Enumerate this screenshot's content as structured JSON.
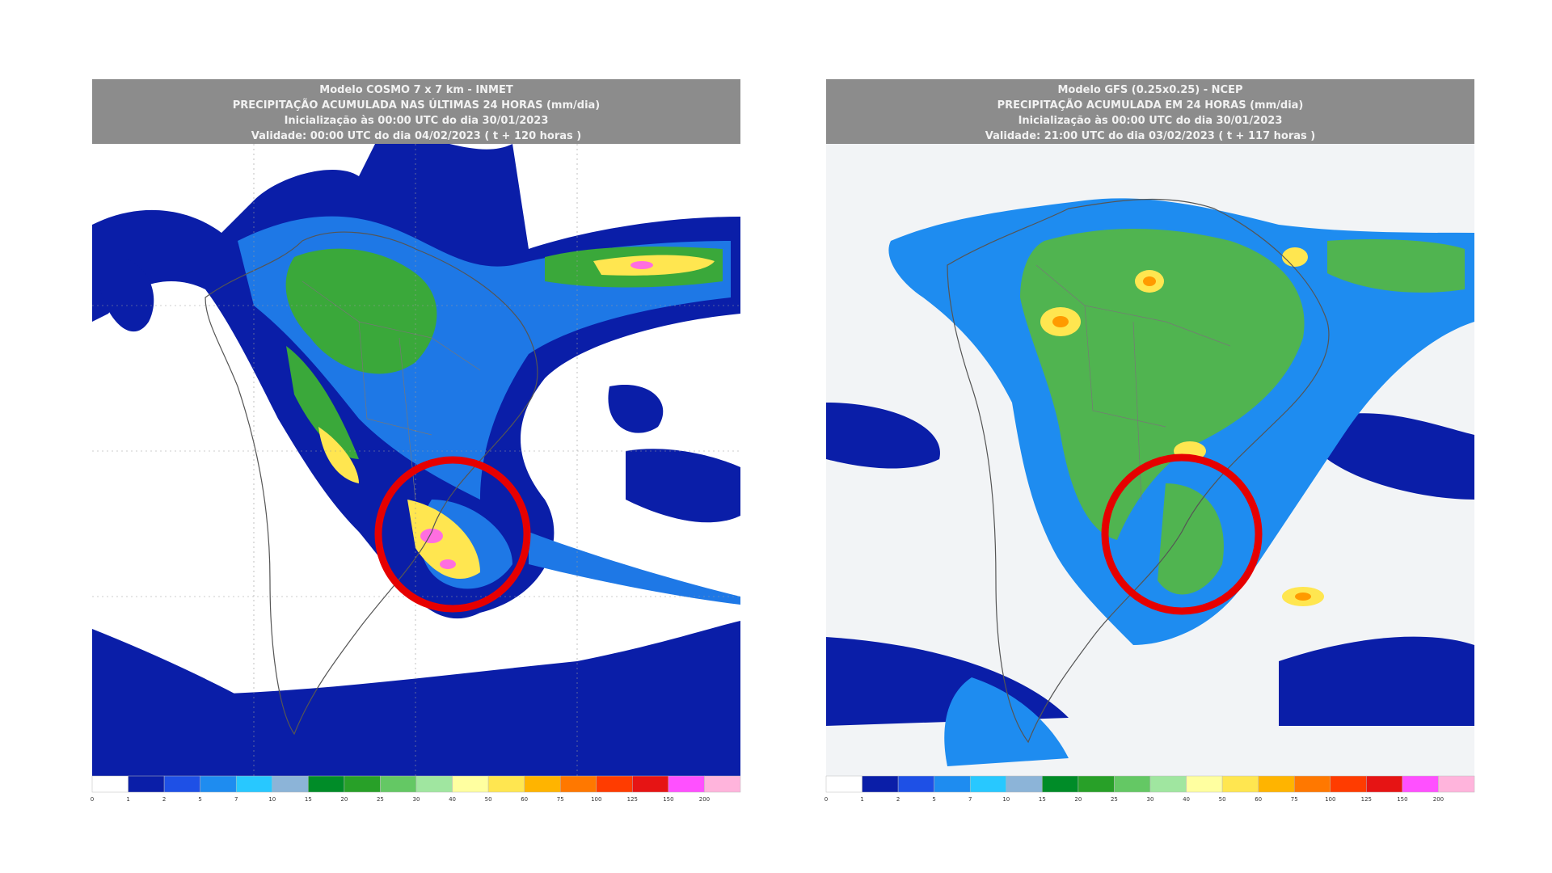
{
  "left_map": {
    "header": [
      "Modelo COSMO 7 x 7 km - INMET",
      "PRECIPITAÇÃO ACUMULADA NAS ÚLTIMAS 24 HORAS (mm/dia)",
      "Inicialização às 00:00 UTC do dia 30/01/2023",
      "Validade: 00:00 UTC do dia 04/02/2023 ( t + 120 horas )"
    ],
    "colorbar_labels": [
      "0",
      "1",
      "2",
      "5",
      "7",
      "10",
      "15",
      "20",
      "25",
      "30",
      "40",
      "50",
      "60",
      "75",
      "100",
      "125",
      "150",
      "200"
    ]
  },
  "right_map": {
    "header": [
      "Modelo GFS (0.25x0.25) - NCEP",
      "PRECIPITAÇÃO ACUMULADA EM 24 HORAS (mm/dia)",
      "Inicialização às 00:00 UTC do dia 30/01/2023",
      "Validade: 21:00 UTC do dia 03/02/2023 ( t + 117 horas )"
    ],
    "colorbar_labels": [
      "0",
      "1",
      "2",
      "5",
      "7",
      "10",
      "15",
      "20",
      "25",
      "30",
      "40",
      "50",
      "60",
      "75",
      "100",
      "125",
      "150",
      "200"
    ]
  }
}
